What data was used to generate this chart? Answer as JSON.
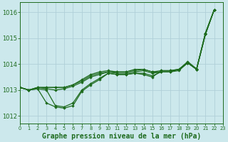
{
  "background_color": "#cce8ec",
  "grid_color": "#b0d0d8",
  "line_color": "#1e6b1e",
  "marker_color": "#1e6b1e",
  "xlabel": "Graphe pression niveau de la mer (hPa)",
  "xlabel_fontsize": 7,
  "tick_fontsize": 6,
  "ylim": [
    1011.7,
    1016.4
  ],
  "xlim": [
    0,
    23
  ],
  "yticks": [
    1012,
    1013,
    1014,
    1015,
    1016
  ],
  "xticks": [
    0,
    1,
    2,
    3,
    4,
    5,
    6,
    7,
    8,
    9,
    10,
    11,
    12,
    13,
    14,
    15,
    16,
    17,
    18,
    19,
    20,
    21,
    22,
    23
  ],
  "series": [
    [
      1013.1,
      1013.0,
      1013.05,
      1013.0,
      1012.4,
      1012.35,
      1012.5,
      1013.0,
      1013.25,
      1013.45,
      1013.65,
      1013.6,
      1013.6,
      1013.65,
      1013.65,
      1013.55,
      1013.7,
      1013.7,
      1013.75,
      1014.05,
      1013.8,
      1015.15,
      1016.1
    ],
    [
      1013.1,
      1013.0,
      1013.05,
      1012.5,
      1012.35,
      1012.3,
      1012.4,
      1012.95,
      1013.2,
      1013.4,
      1013.65,
      1013.6,
      1013.6,
      1013.65,
      1013.6,
      1013.5,
      1013.75,
      1013.75,
      1013.8,
      1014.05,
      1013.8,
      1015.15,
      1016.1
    ],
    [
      1013.1,
      1013.0,
      1013.1,
      1013.05,
      1013.0,
      1013.05,
      1013.15,
      1013.3,
      1013.5,
      1013.6,
      1013.7,
      1013.65,
      1013.65,
      1013.7,
      1013.75,
      1013.65,
      1013.7,
      1013.7,
      1013.8,
      1014.05,
      1013.8,
      1015.15,
      1016.1
    ],
    [
      1013.1,
      1013.0,
      1013.1,
      1013.1,
      1013.1,
      1013.1,
      1013.2,
      1013.35,
      1013.55,
      1013.65,
      1013.7,
      1013.7,
      1013.7,
      1013.75,
      1013.8,
      1013.7,
      1013.7,
      1013.7,
      1013.8,
      1014.05,
      1013.8,
      1015.2,
      1016.1
    ],
    [
      1013.1,
      1013.0,
      1013.1,
      1013.1,
      1013.1,
      1013.1,
      1013.2,
      1013.4,
      1013.6,
      1013.7,
      1013.75,
      1013.7,
      1013.7,
      1013.8,
      1013.8,
      1013.7,
      1013.75,
      1013.75,
      1013.8,
      1014.1,
      1013.82,
      1015.2,
      1016.1
    ]
  ]
}
